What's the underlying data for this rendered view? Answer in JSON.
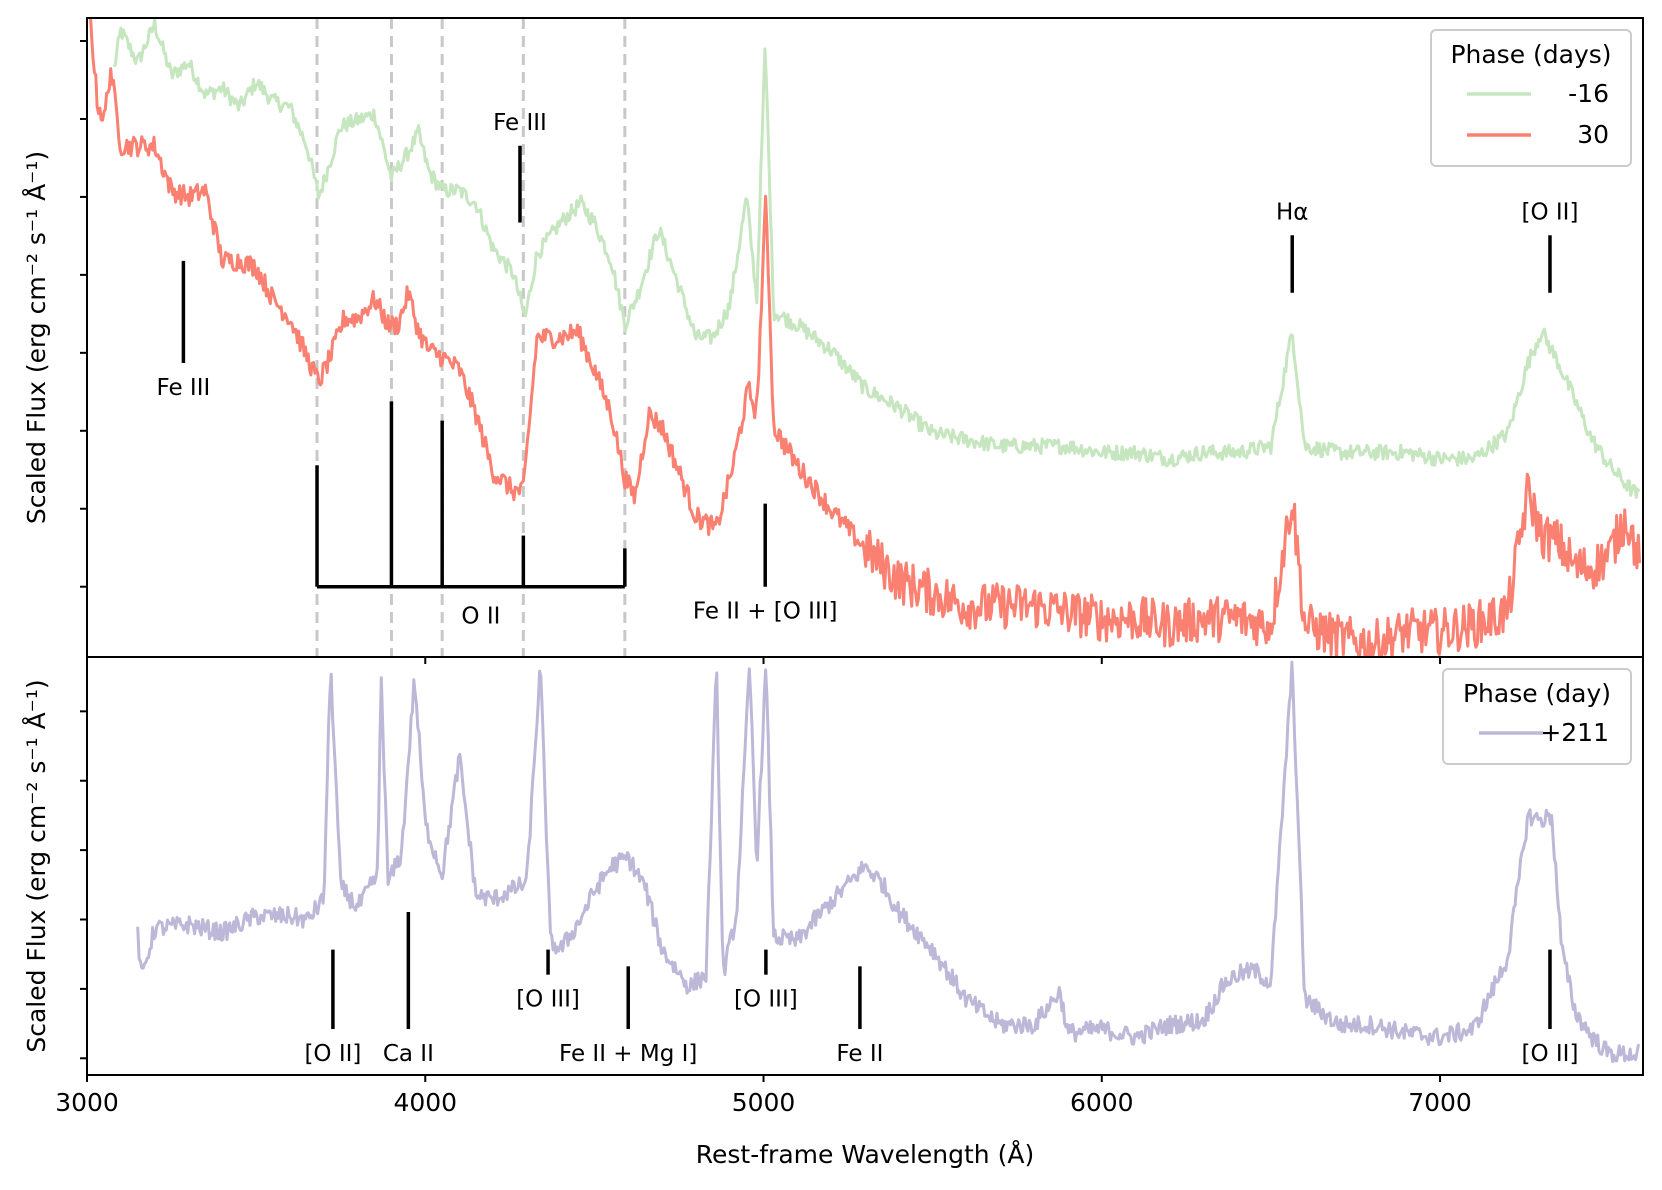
{
  "chart_data": [
    {
      "type": "line",
      "panel": "top",
      "ylabel": "Scaled Flux (erg cm⁻² s⁻¹ Å⁻¹)",
      "xlim": [
        3000,
        7600
      ],
      "ylim": [
        0,
        1
      ],
      "legend": {
        "title": "Phase (days)",
        "placement": "top-right",
        "entries": [
          "-16",
          "30"
        ]
      },
      "series": [
        {
          "name": "-16",
          "color": "#c6e6c0",
          "points": [
            [
              3080,
              0.92
            ],
            [
              3100,
              0.98
            ],
            [
              3150,
              0.93
            ],
            [
              3200,
              0.99
            ],
            [
              3250,
              0.91
            ],
            [
              3300,
              0.93
            ],
            [
              3350,
              0.88
            ],
            [
              3400,
              0.89
            ],
            [
              3450,
              0.86
            ],
            [
              3500,
              0.9
            ],
            [
              3550,
              0.87
            ],
            [
              3600,
              0.86
            ],
            [
              3650,
              0.8
            ],
            [
              3685,
              0.72
            ],
            [
              3710,
              0.76
            ],
            [
              3750,
              0.83
            ],
            [
              3800,
              0.84
            ],
            [
              3850,
              0.85
            ],
            [
              3900,
              0.75
            ],
            [
              3950,
              0.79
            ],
            [
              3980,
              0.82
            ],
            [
              4010,
              0.76
            ],
            [
              4050,
              0.73
            ],
            [
              4100,
              0.73
            ],
            [
              4150,
              0.71
            ],
            [
              4200,
              0.64
            ],
            [
              4260,
              0.6
            ],
            [
              4295,
              0.53
            ],
            [
              4330,
              0.63
            ],
            [
              4400,
              0.68
            ],
            [
              4460,
              0.71
            ],
            [
              4500,
              0.68
            ],
            [
              4550,
              0.62
            ],
            [
              4590,
              0.52
            ],
            [
              4630,
              0.57
            ],
            [
              4690,
              0.67
            ],
            [
              4750,
              0.58
            ],
            [
              4800,
              0.5
            ],
            [
              4850,
              0.5
            ],
            [
              4900,
              0.55
            ],
            [
              4950,
              0.72
            ],
            [
              4980,
              0.56
            ],
            [
              5005,
              0.96
            ],
            [
              5030,
              0.54
            ],
            [
              5100,
              0.52
            ],
            [
              5200,
              0.48
            ],
            [
              5300,
              0.42
            ],
            [
              5400,
              0.39
            ],
            [
              5500,
              0.35
            ],
            [
              5600,
              0.34
            ],
            [
              5700,
              0.33
            ],
            [
              5800,
              0.33
            ],
            [
              5900,
              0.33
            ],
            [
              6000,
              0.32
            ],
            [
              6100,
              0.32
            ],
            [
              6200,
              0.31
            ],
            [
              6300,
              0.32
            ],
            [
              6400,
              0.32
            ],
            [
              6500,
              0.33
            ],
            [
              6563,
              0.51
            ],
            [
              6600,
              0.33
            ],
            [
              6700,
              0.32
            ],
            [
              6800,
              0.32
            ],
            [
              6900,
              0.32
            ],
            [
              7000,
              0.31
            ],
            [
              7100,
              0.31
            ],
            [
              7200,
              0.35
            ],
            [
              7260,
              0.46
            ],
            [
              7300,
              0.51
            ],
            [
              7350,
              0.46
            ],
            [
              7400,
              0.4
            ],
            [
              7450,
              0.34
            ],
            [
              7500,
              0.3
            ],
            [
              7550,
              0.27
            ],
            [
              7590,
              0.25
            ]
          ]
        },
        {
          "name": "30",
          "color": "#fa8072",
          "points": [
            [
              3010,
              1.0
            ],
            [
              3030,
              0.87
            ],
            [
              3050,
              0.84
            ],
            [
              3070,
              0.92
            ],
            [
              3100,
              0.8
            ],
            [
              3150,
              0.8
            ],
            [
              3200,
              0.8
            ],
            [
              3250,
              0.73
            ],
            [
              3300,
              0.72
            ],
            [
              3350,
              0.73
            ],
            [
              3400,
              0.62
            ],
            [
              3450,
              0.62
            ],
            [
              3500,
              0.61
            ],
            [
              3550,
              0.56
            ],
            [
              3600,
              0.53
            ],
            [
              3650,
              0.47
            ],
            [
              3685,
              0.43
            ],
            [
              3720,
              0.47
            ],
            [
              3760,
              0.53
            ],
            [
              3800,
              0.53
            ],
            [
              3850,
              0.56
            ],
            [
              3890,
              0.52
            ],
            [
              3920,
              0.52
            ],
            [
              3950,
              0.57
            ],
            [
              3980,
              0.51
            ],
            [
              4010,
              0.48
            ],
            [
              4050,
              0.47
            ],
            [
              4100,
              0.45
            ],
            [
              4150,
              0.38
            ],
            [
              4200,
              0.29
            ],
            [
              4260,
              0.26
            ],
            [
              4290,
              0.26
            ],
            [
              4330,
              0.5
            ],
            [
              4400,
              0.5
            ],
            [
              4450,
              0.51
            ],
            [
              4500,
              0.45
            ],
            [
              4550,
              0.38
            ],
            [
              4590,
              0.28
            ],
            [
              4620,
              0.25
            ],
            [
              4660,
              0.38
            ],
            [
              4700,
              0.36
            ],
            [
              4750,
              0.29
            ],
            [
              4800,
              0.22
            ],
            [
              4860,
              0.2
            ],
            [
              4910,
              0.3
            ],
            [
              4955,
              0.42
            ],
            [
              4980,
              0.38
            ],
            [
              5007,
              0.72
            ],
            [
              5030,
              0.36
            ],
            [
              5100,
              0.3
            ],
            [
              5200,
              0.23
            ],
            [
              5300,
              0.17
            ],
            [
              5400,
              0.12
            ],
            [
              5500,
              0.1
            ],
            [
              5600,
              0.08
            ],
            [
              5700,
              0.08
            ],
            [
              5800,
              0.08
            ],
            [
              5900,
              0.07
            ],
            [
              6000,
              0.06
            ],
            [
              6100,
              0.06
            ],
            [
              6200,
              0.05
            ],
            [
              6300,
              0.06
            ],
            [
              6400,
              0.06
            ],
            [
              6500,
              0.05
            ],
            [
              6563,
              0.25
            ],
            [
              6600,
              0.05
            ],
            [
              6700,
              0.03
            ],
            [
              6800,
              0.02
            ],
            [
              6900,
              0.04
            ],
            [
              7000,
              0.04
            ],
            [
              7100,
              0.05
            ],
            [
              7200,
              0.07
            ],
            [
              7260,
              0.26
            ],
            [
              7300,
              0.19
            ],
            [
              7350,
              0.18
            ],
            [
              7400,
              0.14
            ],
            [
              7450,
              0.14
            ],
            [
              7500,
              0.16
            ],
            [
              7550,
              0.22
            ],
            [
              7590,
              0.15
            ]
          ]
        }
      ],
      "annotations": [
        {
          "label": "Fe III",
          "x": 3285,
          "y_top": 0.62,
          "y_bottom": 0.46,
          "label_pos": "below"
        },
        {
          "label": "Fe III",
          "x": 4280,
          "y_top": 0.8,
          "y_bottom": 0.68,
          "label_pos": "above"
        },
        {
          "label": "Hα",
          "x": 6563,
          "y_top": 0.66,
          "y_bottom": 0.57,
          "label_pos": "above"
        },
        {
          "label": "[O II]",
          "x": 7325,
          "y_top": 0.66,
          "y_bottom": 0.57,
          "label_pos": "above"
        },
        {
          "label": "Fe II + [O III]",
          "x": 5005,
          "y_top": 0.24,
          "y_bottom": 0.11,
          "label_pos": "below"
        }
      ],
      "o2_comb": {
        "label": "O II",
        "bar_y": 0.11,
        "teeth": [
          {
            "x": 3680,
            "y_top": 0.3
          },
          {
            "x": 3900,
            "y_top": 0.4
          },
          {
            "x": 4050,
            "y_top": 0.37
          },
          {
            "x": 4290,
            "y_top": 0.19
          },
          {
            "x": 4590,
            "y_top": 0.17
          }
        ],
        "dashed_lines_x": [
          3680,
          3900,
          4050,
          4290,
          4590
        ]
      }
    },
    {
      "type": "line",
      "panel": "bottom",
      "ylabel": "Scaled Flux (erg cm⁻² s⁻¹ Å⁻¹)",
      "xlabel": "Rest-frame Wavelength (Å)",
      "xlim": [
        3000,
        7600
      ],
      "ylim": [
        0,
        1
      ],
      "xticks": [
        "3000",
        "4000",
        "5000",
        "6000",
        "7000"
      ],
      "legend": {
        "title": "Phase (day)",
        "placement": "top-right",
        "entries": [
          "+211"
        ]
      },
      "series": [
        {
          "name": "+211",
          "color": "#bdb8d8",
          "points": [
            [
              3150,
              0.34
            ],
            [
              3160,
              0.23
            ],
            [
              3200,
              0.35
            ],
            [
              3300,
              0.36
            ],
            [
              3400,
              0.34
            ],
            [
              3500,
              0.38
            ],
            [
              3600,
              0.38
            ],
            [
              3650,
              0.37
            ],
            [
              3700,
              0.42
            ],
            [
              3720,
              0.98
            ],
            [
              3750,
              0.45
            ],
            [
              3800,
              0.4
            ],
            [
              3860,
              0.48
            ],
            [
              3869,
              0.97
            ],
            [
              3890,
              0.46
            ],
            [
              3930,
              0.53
            ],
            [
              3968,
              0.95
            ],
            [
              4000,
              0.6
            ],
            [
              4050,
              0.48
            ],
            [
              4101,
              0.76
            ],
            [
              4150,
              0.43
            ],
            [
              4200,
              0.42
            ],
            [
              4250,
              0.44
            ],
            [
              4300,
              0.46
            ],
            [
              4340,
              0.98
            ],
            [
              4370,
              0.32
            ],
            [
              4400,
              0.3
            ],
            [
              4450,
              0.36
            ],
            [
              4500,
              0.44
            ],
            [
              4550,
              0.5
            ],
            [
              4600,
              0.52
            ],
            [
              4650,
              0.45
            ],
            [
              4700,
              0.3
            ],
            [
              4780,
              0.21
            ],
            [
              4830,
              0.24
            ],
            [
              4861,
              0.98
            ],
            [
              4880,
              0.24
            ],
            [
              4920,
              0.38
            ],
            [
              4959,
              0.98
            ],
            [
              4980,
              0.5
            ],
            [
              5007,
              0.98
            ],
            [
              5030,
              0.33
            ],
            [
              5100,
              0.32
            ],
            [
              5150,
              0.37
            ],
            [
              5230,
              0.44
            ],
            [
              5300,
              0.5
            ],
            [
              5350,
              0.46
            ],
            [
              5400,
              0.39
            ],
            [
              5500,
              0.3
            ],
            [
              5600,
              0.18
            ],
            [
              5700,
              0.12
            ],
            [
              5800,
              0.12
            ],
            [
              5876,
              0.2
            ],
            [
              5900,
              0.1
            ],
            [
              6000,
              0.11
            ],
            [
              6100,
              0.09
            ],
            [
              6200,
              0.12
            ],
            [
              6300,
              0.13
            ],
            [
              6363,
              0.22
            ],
            [
              6400,
              0.24
            ],
            [
              6450,
              0.25
            ],
            [
              6500,
              0.22
            ],
            [
              6563,
              0.98
            ],
            [
              6600,
              0.18
            ],
            [
              6700,
              0.12
            ],
            [
              6800,
              0.12
            ],
            [
              6900,
              0.1
            ],
            [
              7000,
              0.09
            ],
            [
              7100,
              0.11
            ],
            [
              7200,
              0.28
            ],
            [
              7260,
              0.62
            ],
            [
              7300,
              0.61
            ],
            [
              7330,
              0.62
            ],
            [
              7360,
              0.3
            ],
            [
              7400,
              0.15
            ],
            [
              7450,
              0.09
            ],
            [
              7500,
              0.05
            ],
            [
              7590,
              0.05
            ]
          ]
        }
      ],
      "annotations": [
        {
          "label": "[O II]",
          "x": 3727,
          "y_top": 0.3,
          "y_bottom": 0.11,
          "label_pos": "below"
        },
        {
          "label": "Ca II",
          "x": 3950,
          "y_top": 0.39,
          "y_bottom": 0.11,
          "label_pos": "below"
        },
        {
          "label": "[O III]",
          "x": 4363,
          "y_top": 0.3,
          "y_bottom": 0.24,
          "label_pos": "below"
        },
        {
          "label": "Fe II + Mg I]",
          "x": 4600,
          "y_top": 0.26,
          "y_bottom": 0.11,
          "label_pos": "below"
        },
        {
          "label": "[O III]",
          "x": 5007,
          "y_top": 0.3,
          "y_bottom": 0.24,
          "label_pos": "below"
        },
        {
          "label": "Fe II",
          "x": 5285,
          "y_top": 0.26,
          "y_bottom": 0.11,
          "label_pos": "below"
        },
        {
          "label": "[O II]",
          "x": 7325,
          "y_top": 0.3,
          "y_bottom": 0.11,
          "label_pos": "below"
        }
      ]
    }
  ]
}
